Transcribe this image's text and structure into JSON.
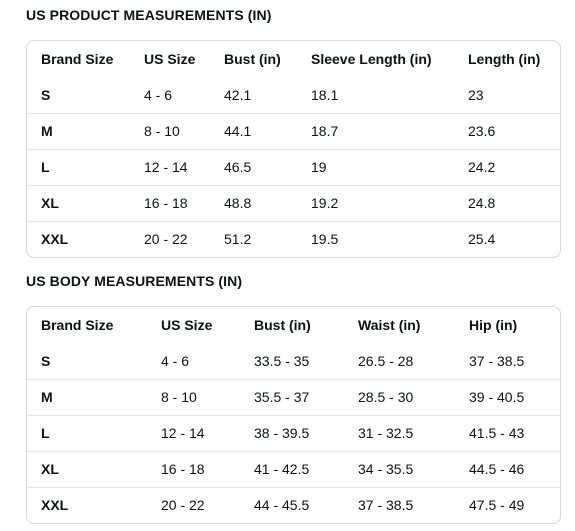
{
  "product": {
    "title": "US PRODUCT MEASUREMENTS (IN)",
    "headers": [
      "Brand Size",
      "US Size",
      "Bust (in)",
      "Sleeve Length (in)",
      "Length (in)"
    ],
    "rows": [
      [
        "S",
        "4 - 6",
        "42.1",
        "18.1",
        "23"
      ],
      [
        "M",
        "8 - 10",
        "44.1",
        "18.7",
        "23.6"
      ],
      [
        "L",
        "12 - 14",
        "46.5",
        "19",
        "24.2"
      ],
      [
        "XL",
        "16 - 18",
        "48.8",
        "19.2",
        "24.8"
      ],
      [
        "XXL",
        "20 - 22",
        "51.2",
        "19.5",
        "25.4"
      ]
    ]
  },
  "body": {
    "title": "US BODY MEASUREMENTS (IN)",
    "headers": [
      "Brand Size",
      "US Size",
      "Bust (in)",
      "Waist (in)",
      "Hip (in)"
    ],
    "rows": [
      [
        "S",
        "4 - 6",
        "33.5 - 35",
        "26.5 - 28",
        "37 - 38.5"
      ],
      [
        "M",
        "8 - 10",
        "35.5 - 37",
        "28.5 - 30",
        "39 - 40.5"
      ],
      [
        "L",
        "12 - 14",
        "38 - 39.5",
        "31 - 32.5",
        "41.5 - 43"
      ],
      [
        "XL",
        "16 - 18",
        "41 - 42.5",
        "34 - 35.5",
        "44.5 - 46"
      ],
      [
        "XXL",
        "20 - 22",
        "44 - 45.5",
        "37 - 38.5",
        "47.5 - 49"
      ]
    ]
  }
}
